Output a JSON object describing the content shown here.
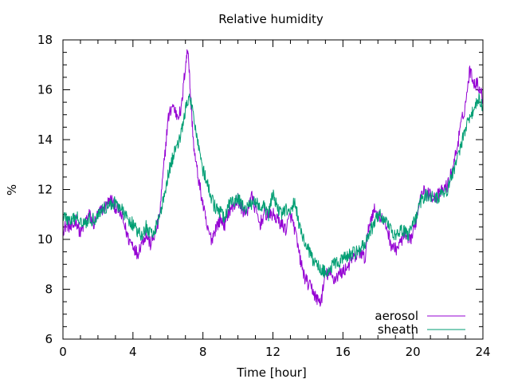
{
  "chart_data": {
    "type": "line",
    "title": "Relative humidity",
    "xlabel": "Time [hour]",
    "ylabel": "%",
    "xlim": [
      0,
      24
    ],
    "ylim": [
      6,
      18
    ],
    "xticks": [
      0,
      4,
      8,
      12,
      16,
      20,
      24
    ],
    "yticks": [
      6,
      8,
      10,
      12,
      14,
      16,
      18
    ],
    "xticks_minor_step": 1,
    "yticks_minor_step": 0.5,
    "grid": false,
    "legend_position": "bottom-right",
    "series": [
      {
        "name": "aerosol",
        "color": "#9400d3",
        "points": [
          [
            0.0,
            10.4
          ],
          [
            0.25,
            10.6
          ],
          [
            0.5,
            10.4
          ],
          [
            0.75,
            10.8
          ],
          [
            1.0,
            10.2
          ],
          [
            1.25,
            10.7
          ],
          [
            1.5,
            11.0
          ],
          [
            1.75,
            10.6
          ],
          [
            2.0,
            11.0
          ],
          [
            2.25,
            11.2
          ],
          [
            2.5,
            11.4
          ],
          [
            2.75,
            11.6
          ],
          [
            3.0,
            11.3
          ],
          [
            3.25,
            11.1
          ],
          [
            3.5,
            10.6
          ],
          [
            3.75,
            10.0
          ],
          [
            4.0,
            9.8
          ],
          [
            4.25,
            9.4
          ],
          [
            4.5,
            9.9
          ],
          [
            4.75,
            10.2
          ],
          [
            5.0,
            9.8
          ],
          [
            5.25,
            10.2
          ],
          [
            5.5,
            10.8
          ],
          [
            5.75,
            12.8
          ],
          [
            6.0,
            14.8
          ],
          [
            6.25,
            15.4
          ],
          [
            6.5,
            15.0
          ],
          [
            6.75,
            15.1
          ],
          [
            7.0,
            17.0
          ],
          [
            7.15,
            17.7
          ],
          [
            7.3,
            15.6
          ],
          [
            7.5,
            13.5
          ],
          [
            7.75,
            12.4
          ],
          [
            8.0,
            11.4
          ],
          [
            8.25,
            10.4
          ],
          [
            8.5,
            10.0
          ],
          [
            8.75,
            10.5
          ],
          [
            9.0,
            10.8
          ],
          [
            9.25,
            10.6
          ],
          [
            9.5,
            11.2
          ],
          [
            9.75,
            11.3
          ],
          [
            10.0,
            11.6
          ],
          [
            10.25,
            11.2
          ],
          [
            10.5,
            11.0
          ],
          [
            10.75,
            11.8
          ],
          [
            11.0,
            11.2
          ],
          [
            11.25,
            10.6
          ],
          [
            11.5,
            11.0
          ],
          [
            11.75,
            11.0
          ],
          [
            12.0,
            11.0
          ],
          [
            12.25,
            10.8
          ],
          [
            12.5,
            10.6
          ],
          [
            12.75,
            10.4
          ],
          [
            13.0,
            11.0
          ],
          [
            13.25,
            10.4
          ],
          [
            13.5,
            9.4
          ],
          [
            13.75,
            8.6
          ],
          [
            14.0,
            8.2
          ],
          [
            14.25,
            8.0
          ],
          [
            14.5,
            7.6
          ],
          [
            14.75,
            7.5
          ],
          [
            15.0,
            8.6
          ],
          [
            15.25,
            8.6
          ],
          [
            15.5,
            8.4
          ],
          [
            15.75,
            8.6
          ],
          [
            16.0,
            8.7
          ],
          [
            16.25,
            8.9
          ],
          [
            16.5,
            9.2
          ],
          [
            16.75,
            9.3
          ],
          [
            17.0,
            9.5
          ],
          [
            17.25,
            9.2
          ],
          [
            17.5,
            10.6
          ],
          [
            17.75,
            11.2
          ],
          [
            18.0,
            11.0
          ],
          [
            18.25,
            10.8
          ],
          [
            18.5,
            10.5
          ],
          [
            18.75,
            9.8
          ],
          [
            19.0,
            9.6
          ],
          [
            19.25,
            9.8
          ],
          [
            19.5,
            10.2
          ],
          [
            19.75,
            9.9
          ],
          [
            20.0,
            10.2
          ],
          [
            20.25,
            11.0
          ],
          [
            20.5,
            12.1
          ],
          [
            20.75,
            11.8
          ],
          [
            21.0,
            11.8
          ],
          [
            21.25,
            11.7
          ],
          [
            21.5,
            11.8
          ],
          [
            21.75,
            12.0
          ],
          [
            22.0,
            12.2
          ],
          [
            22.25,
            12.8
          ],
          [
            22.5,
            13.6
          ],
          [
            22.75,
            14.6
          ],
          [
            23.0,
            15.4
          ],
          [
            23.25,
            16.8
          ],
          [
            23.5,
            16.3
          ],
          [
            23.75,
            16.2
          ],
          [
            24.0,
            15.6
          ]
        ]
      },
      {
        "name": "sheath",
        "color": "#009e73",
        "points": [
          [
            0.0,
            11.0
          ],
          [
            0.25,
            10.8
          ],
          [
            0.5,
            10.7
          ],
          [
            0.75,
            10.9
          ],
          [
            1.0,
            10.8
          ],
          [
            1.25,
            10.7
          ],
          [
            1.5,
            10.8
          ],
          [
            1.75,
            10.8
          ],
          [
            2.0,
            11.0
          ],
          [
            2.25,
            11.2
          ],
          [
            2.5,
            11.3
          ],
          [
            2.75,
            11.4
          ],
          [
            3.0,
            11.5
          ],
          [
            3.25,
            11.3
          ],
          [
            3.5,
            11.0
          ],
          [
            3.75,
            10.8
          ],
          [
            4.0,
            10.6
          ],
          [
            4.25,
            10.3
          ],
          [
            4.5,
            10.1
          ],
          [
            4.75,
            10.5
          ],
          [
            5.0,
            10.2
          ],
          [
            5.25,
            10.4
          ],
          [
            5.5,
            10.9
          ],
          [
            5.75,
            11.6
          ],
          [
            6.0,
            12.6
          ],
          [
            6.25,
            13.2
          ],
          [
            6.5,
            13.8
          ],
          [
            6.75,
            14.2
          ],
          [
            7.0,
            15.2
          ],
          [
            7.25,
            15.7
          ],
          [
            7.5,
            14.8
          ],
          [
            7.75,
            13.8
          ],
          [
            8.0,
            12.8
          ],
          [
            8.25,
            12.2
          ],
          [
            8.5,
            11.6
          ],
          [
            8.75,
            11.2
          ],
          [
            9.0,
            11.1
          ],
          [
            9.25,
            10.8
          ],
          [
            9.5,
            11.4
          ],
          [
            9.75,
            11.5
          ],
          [
            10.0,
            11.6
          ],
          [
            10.25,
            11.4
          ],
          [
            10.5,
            11.2
          ],
          [
            10.75,
            11.4
          ],
          [
            11.0,
            11.6
          ],
          [
            11.25,
            11.2
          ],
          [
            11.5,
            11.3
          ],
          [
            11.75,
            11.0
          ],
          [
            12.0,
            11.8
          ],
          [
            12.25,
            11.3
          ],
          [
            12.5,
            11.0
          ],
          [
            12.75,
            11.2
          ],
          [
            13.0,
            11.0
          ],
          [
            13.25,
            11.6
          ],
          [
            13.5,
            10.6
          ],
          [
            13.75,
            10.0
          ],
          [
            14.0,
            9.6
          ],
          [
            14.25,
            9.2
          ],
          [
            14.5,
            9.0
          ],
          [
            14.75,
            8.8
          ],
          [
            15.0,
            8.7
          ],
          [
            15.25,
            8.8
          ],
          [
            15.5,
            9.0
          ],
          [
            15.75,
            9.1
          ],
          [
            16.0,
            9.2
          ],
          [
            16.25,
            9.3
          ],
          [
            16.5,
            9.4
          ],
          [
            16.75,
            9.5
          ],
          [
            17.0,
            9.6
          ],
          [
            17.25,
            9.8
          ],
          [
            17.5,
            10.2
          ],
          [
            17.75,
            10.6
          ],
          [
            18.0,
            11.0
          ],
          [
            18.25,
            10.9
          ],
          [
            18.5,
            10.7
          ],
          [
            18.75,
            10.3
          ],
          [
            19.0,
            10.2
          ],
          [
            19.25,
            10.4
          ],
          [
            19.5,
            10.3
          ],
          [
            19.75,
            10.2
          ],
          [
            20.0,
            10.6
          ],
          [
            20.25,
            11.0
          ],
          [
            20.5,
            11.6
          ],
          [
            20.75,
            11.8
          ],
          [
            21.0,
            11.8
          ],
          [
            21.25,
            11.6
          ],
          [
            21.5,
            11.7
          ],
          [
            21.75,
            11.9
          ],
          [
            22.0,
            12.0
          ],
          [
            22.25,
            12.6
          ],
          [
            22.5,
            13.2
          ],
          [
            22.75,
            13.8
          ],
          [
            23.0,
            14.4
          ],
          [
            23.25,
            15.0
          ],
          [
            23.5,
            15.2
          ],
          [
            23.75,
            15.6
          ],
          [
            24.0,
            15.4
          ]
        ]
      }
    ]
  }
}
